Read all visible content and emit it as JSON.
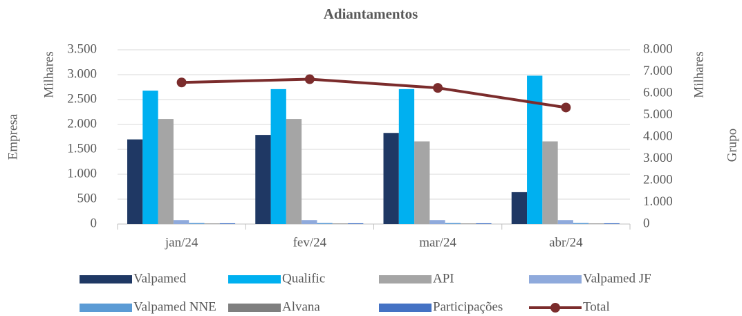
{
  "chart_data": {
    "type": "bar",
    "title": "Adiantamentos",
    "ylabel": "Empresa",
    "ylabel_unit": "Milhares",
    "y2label": "Grupo",
    "y2label_unit": "Milhares",
    "categories": [
      "jan/24",
      "fev/24",
      "mar/24",
      "abr/24"
    ],
    "series": [
      {
        "name": "Valpamed",
        "color": "#1f3864",
        "values": [
          1700,
          1790,
          1830,
          640
        ]
      },
      {
        "name": "Qualific",
        "color": "#00b0f0",
        "values": [
          2680,
          2710,
          2710,
          2980
        ]
      },
      {
        "name": "API",
        "color": "#a5a5a5",
        "values": [
          2110,
          2110,
          1660,
          1660
        ]
      },
      {
        "name": "Valpamed JF",
        "color": "#8faadc",
        "values": [
          80,
          80,
          80,
          80
        ]
      },
      {
        "name": "Valpamed NNE",
        "color": "#5b9bd5",
        "values": [
          20,
          20,
          20,
          20
        ]
      },
      {
        "name": "Alvana",
        "color": "#7f7f7f",
        "values": [
          10,
          10,
          10,
          10
        ]
      },
      {
        "name": "Participações",
        "color": "#4472c4",
        "values": [
          15,
          15,
          15,
          15
        ]
      },
      {
        "name": "Total",
        "color": "#7b2c2c",
        "type": "line",
        "axis": "y2",
        "values": [
          6500,
          6650,
          6250,
          5350
        ]
      }
    ],
    "ylim": [
      0,
      3500
    ],
    "yticks": [
      0,
      500,
      {
        "value": 1000,
        "label": "1.000"
      },
      {
        "value": 1500,
        "label": "1.500"
      },
      {
        "value": 2000,
        "label": "2.000"
      },
      {
        "value": 2500,
        "label": "2.500"
      },
      {
        "value": 3000,
        "label": "3.000"
      },
      {
        "value": 3500,
        "label": "3.500"
      }
    ],
    "y2lim": [
      0,
      8000
    ],
    "y2ticks": [
      0,
      {
        "value": 1000,
        "label": "1.000"
      },
      {
        "value": 2000,
        "label": "2.000"
      },
      {
        "value": 3000,
        "label": "3.000"
      },
      {
        "value": 4000,
        "label": "4.000"
      },
      {
        "value": 5000,
        "label": "5.000"
      },
      {
        "value": 6000,
        "label": "6.000"
      },
      {
        "value": 7000,
        "label": "7.000"
      },
      {
        "value": 8000,
        "label": "8.000"
      }
    ],
    "grid": true
  }
}
